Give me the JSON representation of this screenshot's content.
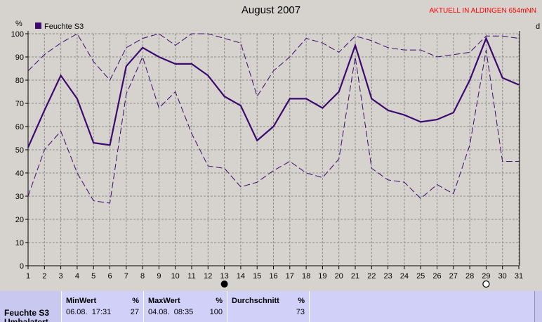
{
  "chart_data": {
    "type": "line",
    "title": "August 2007",
    "station": "AKTUELL IN ALDINGEN 654mNN",
    "ylabel": "%",
    "right_axis_label": "d",
    "legend": "Feuchte S3",
    "ylim": [
      0,
      100
    ],
    "yticks": [
      0,
      10,
      20,
      30,
      40,
      50,
      60,
      70,
      80,
      90,
      100
    ],
    "x": [
      1,
      2,
      3,
      4,
      5,
      6,
      7,
      8,
      9,
      10,
      11,
      12,
      13,
      14,
      15,
      16,
      17,
      18,
      19,
      20,
      21,
      22,
      23,
      24,
      25,
      26,
      27,
      28,
      29,
      30,
      31
    ],
    "series": [
      {
        "name": "Feuchte S3",
        "values": [
          51,
          67,
          82,
          72,
          53,
          52,
          86,
          94,
          90,
          87,
          87,
          82,
          73,
          69,
          54,
          60,
          72,
          72,
          68,
          75,
          95,
          72,
          67,
          65,
          62,
          63,
          66,
          80,
          98,
          81,
          78
        ]
      },
      {
        "values": [
          84,
          91,
          96,
          100,
          88,
          80,
          94,
          98,
          100,
          95,
          100,
          100,
          98,
          96,
          73,
          84,
          90,
          98,
          96,
          92,
          99,
          97,
          94,
          93,
          93,
          90,
          91,
          92,
          99,
          99,
          98
        ]
      },
      {
        "values": [
          30,
          50,
          58,
          40,
          28,
          27,
          74,
          90,
          68,
          75,
          57,
          43,
          42,
          34,
          36,
          41,
          45,
          40,
          38,
          46,
          90,
          42,
          37,
          36,
          29,
          35,
          31,
          52,
          93,
          45,
          45
        ]
      }
    ],
    "moon_markers": [
      {
        "day": 13,
        "phase": "new"
      },
      {
        "day": 29,
        "phase": "full"
      }
    ],
    "colors": {
      "series": "#3c0a6e",
      "grid": "#8c8c8c",
      "background": "#d6d3ce"
    }
  },
  "stats": {
    "row_label": "Feuchte S3",
    "row_label_cut": "Umhalatert",
    "min": {
      "header": "MinWert",
      "unit": "%",
      "datetime": "06.08.  17:31",
      "value": "27"
    },
    "max": {
      "header": "MaxWert",
      "unit": "%",
      "datetime": "04.08.  08:35",
      "value": "100"
    },
    "avg": {
      "header": "Durchschnitt",
      "unit": "%",
      "value": "73"
    }
  }
}
